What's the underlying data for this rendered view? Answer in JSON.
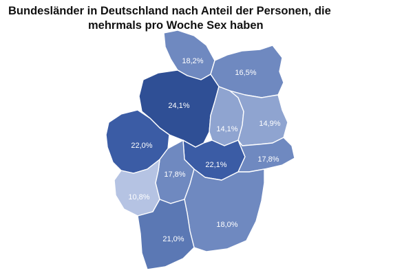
{
  "title": {
    "line1": "Bundesländer in Deutschland nach Anteil der Personen, die",
    "line2": "mehrmals pro Woche Sex haben"
  },
  "colors": {
    "darkest": "#2f4f95",
    "dark": "#3b5ca5",
    "medium": "#5b78b4",
    "medium_light": "#6f89c0",
    "light": "#8fa4d0",
    "lightest": "#b5c3e3",
    "label": "#ffffff",
    "border": "#ffffff"
  },
  "chart_data": {
    "type": "choropleth",
    "title": "Bundesländer in Deutschland nach Anteil der Personen, die mehrmals pro Woche Sex haben",
    "regions": [
      {
        "id": "schleswig-holstein",
        "value": 18.2,
        "label": "18,2%"
      },
      {
        "id": "mecklenburg-vorpommern",
        "value": 16.5,
        "label": "16,5%"
      },
      {
        "id": "niedersachsen",
        "value": 24.1,
        "label": "24,1%"
      },
      {
        "id": "sachsen-anhalt",
        "value": 14.1,
        "label": "14,1%"
      },
      {
        "id": "brandenburg",
        "value": 14.9,
        "label": "14,9%"
      },
      {
        "id": "nordrhein-westfalen",
        "value": 22.0,
        "label": "22,0%"
      },
      {
        "id": "thueringen",
        "value": 22.1,
        "label": "22,1%"
      },
      {
        "id": "sachsen",
        "value": 17.8,
        "label": "17,8%"
      },
      {
        "id": "hessen",
        "value": 17.8,
        "label": "17,8%"
      },
      {
        "id": "rheinland-pfalz",
        "value": 10.8,
        "label": "10,8%"
      },
      {
        "id": "bayern",
        "value": 18.0,
        "label": "18,0%"
      },
      {
        "id": "baden-wuerttemberg",
        "value": 21.0,
        "label": "21,0%"
      }
    ]
  }
}
